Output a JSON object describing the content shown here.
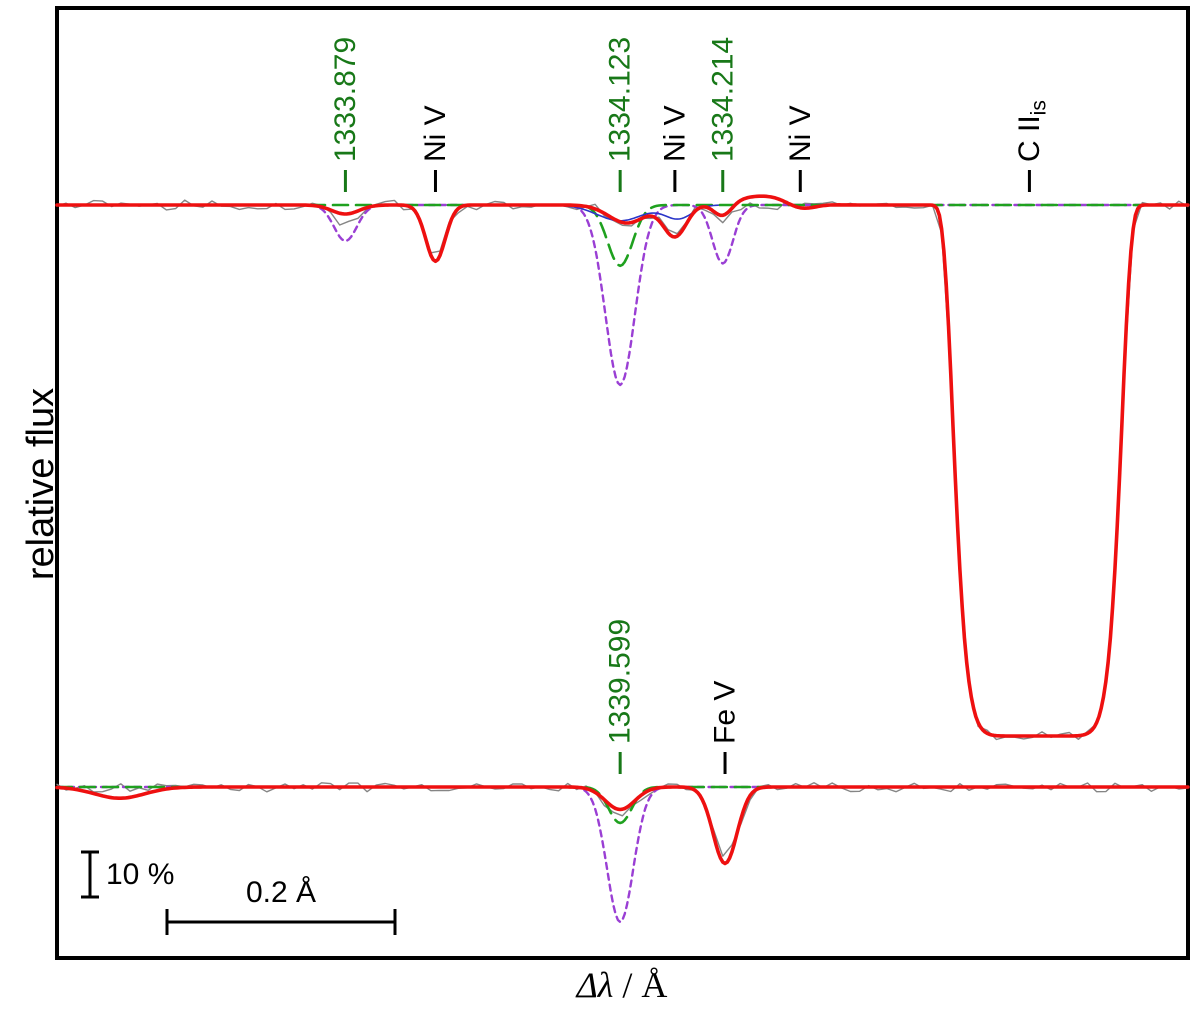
{
  "figure": {
    "ylabel": "relative flux",
    "xlabel_symbol": "Δλ",
    "xlabel_unit": " / Å",
    "background": "#ffffff",
    "frame_color": "#000000"
  },
  "colors": {
    "observed_gray": "#858585",
    "model_red": "#ee1010",
    "component_purple": "#9a3fd4",
    "component_green": "#1fa11f",
    "component_blue": "#2a35c8",
    "label_green": "#187818",
    "label_black": "#000000"
  },
  "scale_bars": {
    "flux": {
      "label": "10 %",
      "value_pct": 10
    },
    "wavelength": {
      "label": "0.2 Å",
      "value_A": 0.2
    }
  },
  "chart_data": {
    "type": "line",
    "xlabel": "Δλ / Å",
    "ylabel": "relative flux",
    "x_axis": {
      "unit": "Å",
      "ticks_visible": false,
      "range_A": [
        0,
        0.992
      ]
    },
    "panels": [
      {
        "id": "top",
        "annotations": [
          {
            "text": "1333.879",
            "x_A": 0.253,
            "color": "green"
          },
          {
            "text": "Ni V",
            "x_A": 0.332,
            "color": "black"
          },
          {
            "text": "1334.123",
            "x_A": 0.494,
            "color": "green"
          },
          {
            "text": "Ni V",
            "x_A": 0.542,
            "color": "black"
          },
          {
            "text": "1334.214",
            "x_A": 0.584,
            "color": "green"
          },
          {
            "text": "Ni V",
            "x_A": 0.652,
            "color": "black"
          },
          {
            "text": "C II",
            "subscript": "is",
            "x_A": 0.853,
            "color": "black"
          }
        ],
        "series": [
          {
            "name": "observed",
            "color": "observed_gray",
            "width": 1.4,
            "noise_pct": 1.1,
            "seed": 3,
            "sample_A": 0.008,
            "features": [
              {
                "center_A": 0.253,
                "depth_pct": 4,
                "width_A": 0.01
              },
              {
                "center_A": 0.332,
                "depth_pct": 12,
                "width_A": 0.0085
              },
              {
                "center_A": 0.5,
                "depth_pct": 4,
                "width_A": 0.016
              },
              {
                "center_A": 0.542,
                "depth_pct": 7,
                "width_A": 0.01
              },
              {
                "center_A": 0.584,
                "depth_pct": 4,
                "width_A": 0.008
              },
              {
                "center_A": 0.86,
                "depth_pct": 118,
                "width_A": 0.075,
                "profile": "sat"
              }
            ]
          },
          {
            "name": "component-purple",
            "color": "component_purple",
            "width": 2.4,
            "dash": [
              6,
              5
            ],
            "features": [
              {
                "center_A": 0.253,
                "depth_pct": 8,
                "width_A": 0.01
              },
              {
                "center_A": 0.494,
                "depth_pct": 40,
                "width_A": 0.013
              },
              {
                "center_A": 0.584,
                "depth_pct": 13,
                "width_A": 0.009
              }
            ]
          },
          {
            "name": "component-green",
            "color": "component_green",
            "width": 2.6,
            "dash": [
              15,
              8
            ],
            "features": [
              {
                "center_A": 0.494,
                "depth_pct": 13.5,
                "width_A": 0.011
              }
            ]
          },
          {
            "name": "component-blue",
            "color": "component_blue",
            "width": 1.6,
            "x_start_A": 0.43,
            "x_end_A": 0.58,
            "features": [
              {
                "center_A": 0.494,
                "depth_pct": 3.5,
                "width_A": 0.02
              },
              {
                "center_A": 0.545,
                "depth_pct": 3,
                "width_A": 0.012
              }
            ]
          },
          {
            "name": "model",
            "color": "model_red",
            "width": 3.6,
            "features": [
              {
                "center_A": 0.253,
                "depth_pct": 2,
                "width_A": 0.012
              },
              {
                "center_A": 0.332,
                "depth_pct": 12.5,
                "width_A": 0.0085
              },
              {
                "center_A": 0.5,
                "depth_pct": 4,
                "width_A": 0.016
              },
              {
                "center_A": 0.542,
                "depth_pct": 7,
                "width_A": 0.01
              },
              {
                "center_A": 0.584,
                "depth_pct": 3,
                "width_A": 0.008
              },
              {
                "center_A": 0.62,
                "depth_pct": -2,
                "width_A": 0.025
              },
              {
                "center_A": 0.652,
                "depth_pct": 1.5,
                "width_A": 0.012
              },
              {
                "center_A": 0.86,
                "depth_pct": 118,
                "width_A": 0.075,
                "profile": "sat"
              }
            ]
          }
        ]
      },
      {
        "id": "bottom",
        "annotations": [
          {
            "text": "1339.599",
            "x_A": 0.494,
            "color": "green"
          },
          {
            "text": "Fe V",
            "x_A": 0.586,
            "color": "black"
          }
        ],
        "series": [
          {
            "name": "observed",
            "color": "observed_gray",
            "width": 1.4,
            "noise_pct": 1.1,
            "seed": 7,
            "sample_A": 0.008,
            "features": [
              {
                "center_A": 0.494,
                "depth_pct": 6,
                "width_A": 0.013
              },
              {
                "center_A": 0.586,
                "depth_pct": 16,
                "width_A": 0.011
              }
            ]
          },
          {
            "name": "component-purple",
            "color": "component_purple",
            "width": 2.4,
            "dash": [
              6,
              5
            ],
            "features": [
              {
                "center_A": 0.494,
                "depth_pct": 30,
                "width_A": 0.0115
              }
            ]
          },
          {
            "name": "component-green",
            "color": "component_green",
            "width": 2.6,
            "dash": [
              15,
              8
            ],
            "features": [
              {
                "center_A": 0.494,
                "depth_pct": 8,
                "width_A": 0.01
              }
            ]
          },
          {
            "name": "model",
            "color": "model_red",
            "width": 3.6,
            "features": [
              {
                "center_A": 0.055,
                "depth_pct": 2.5,
                "width_A": 0.022
              },
              {
                "center_A": 0.494,
                "depth_pct": 5,
                "width_A": 0.013
              },
              {
                "center_A": 0.586,
                "depth_pct": 17,
                "width_A": 0.0105
              }
            ]
          }
        ]
      }
    ]
  }
}
